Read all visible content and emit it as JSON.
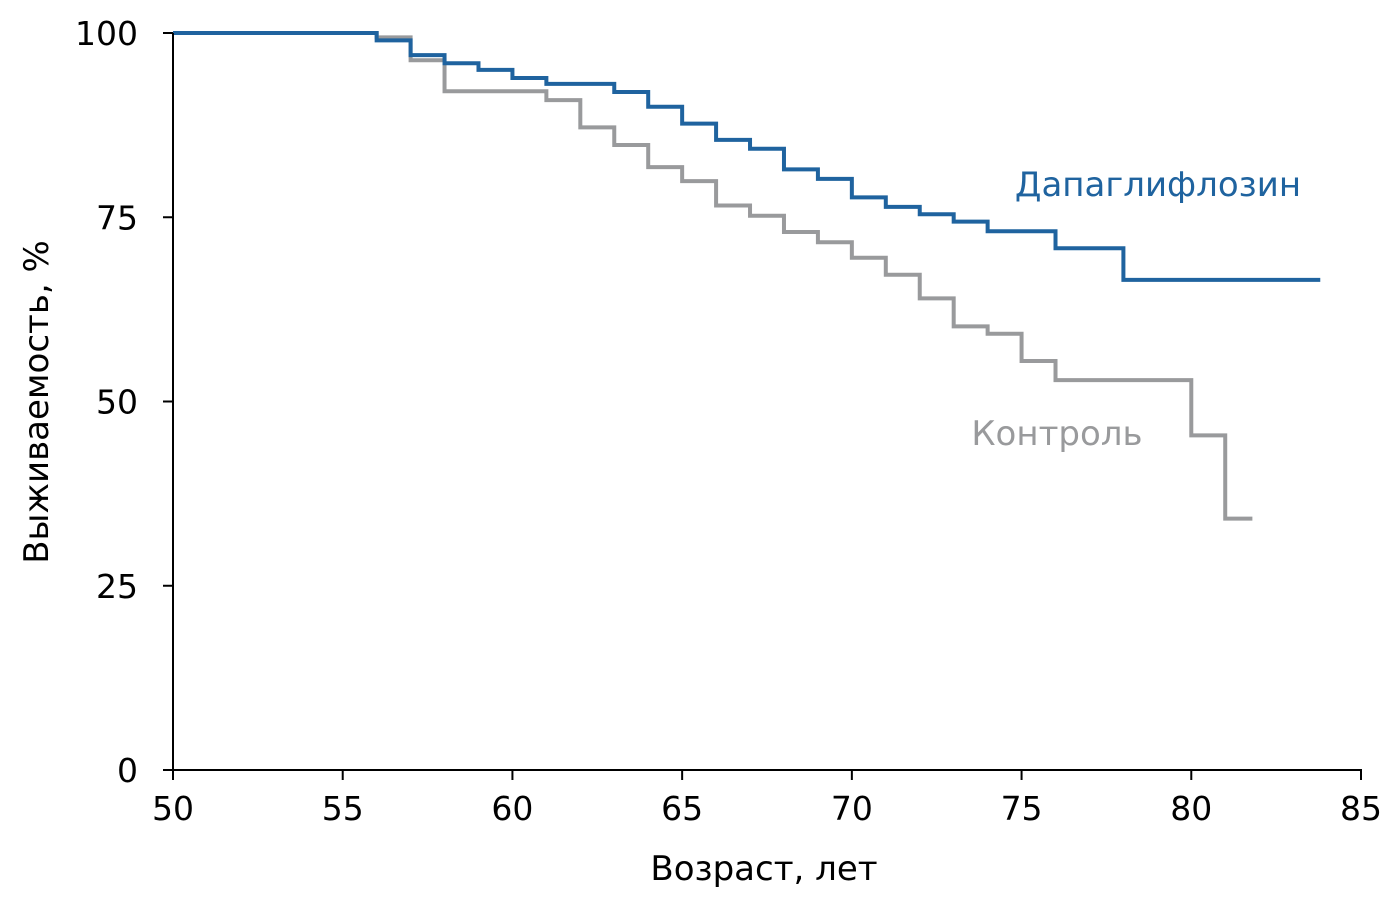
{
  "chart_data": {
    "type": "line",
    "step": true,
    "title": "",
    "xlabel": "Возраст, лет",
    "ylabel": "Выживаемость, %",
    "xlim": [
      50,
      85
    ],
    "ylim": [
      0,
      100
    ],
    "xticks": [
      "50",
      "55",
      "60",
      "65",
      "70",
      "75",
      "80",
      "85"
    ],
    "yticks": [
      "0",
      "25",
      "50",
      "75",
      "100"
    ],
    "grid": false,
    "series": [
      {
        "name": "Дапаглифлозин",
        "color": "#1f639f",
        "x": [
          50,
          56,
          57,
          58,
          59,
          60,
          61,
          63,
          64,
          65,
          66,
          67,
          68,
          69,
          70,
          71,
          72,
          73,
          74,
          76,
          78,
          83.8
        ],
        "y": [
          100,
          99.0,
          97.0,
          95.9,
          95.0,
          93.9,
          93.1,
          92.0,
          90.0,
          87.7,
          85.5,
          84.3,
          81.5,
          80.2,
          77.7,
          76.4,
          75.4,
          74.4,
          73.1,
          70.8,
          66.5,
          66.5
        ]
      },
      {
        "name": "Контроль",
        "color": "#999a9c",
        "x": [
          50,
          56,
          57,
          58,
          61,
          62,
          63,
          64,
          65,
          66,
          67,
          68,
          69,
          70,
          71,
          72,
          73,
          74,
          75,
          76,
          80,
          81,
          81.8
        ],
        "y": [
          100,
          99.4,
          96.3,
          92.1,
          90.9,
          87.2,
          84.8,
          81.8,
          79.9,
          76.6,
          75.2,
          73.0,
          71.6,
          69.5,
          67.2,
          64.0,
          60.2,
          59.2,
          55.5,
          52.9,
          45.4,
          34.1,
          34.1
        ]
      }
    ],
    "annotations": [
      {
        "text": "Дапаглифлозин",
        "series": 0
      },
      {
        "text": "Контроль",
        "series": 1
      }
    ]
  }
}
